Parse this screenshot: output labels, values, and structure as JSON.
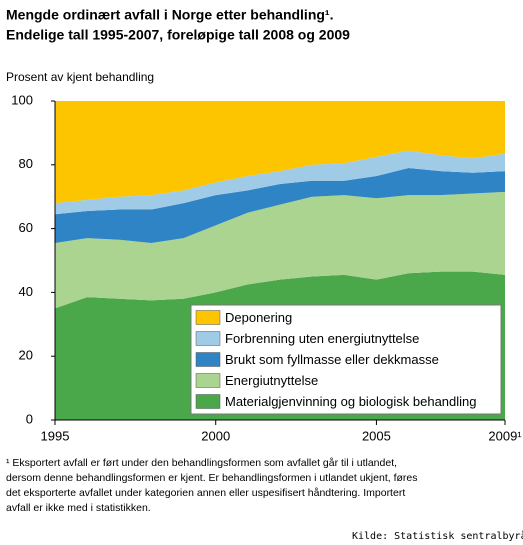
{
  "chart_data": {
    "type": "stacked_area",
    "title": "Mengde ordinært avfall i Norge etter behandling¹.",
    "subtitle": "Endelige tall 1995-2007, foreløpige tall 2008 og 2009",
    "y_label": "Prosent av kjent behandling",
    "x": [
      1995,
      1996,
      1997,
      1998,
      1999,
      2000,
      2001,
      2002,
      2003,
      2004,
      2005,
      2006,
      2007,
      2008,
      2009
    ],
    "series": [
      {
        "name": "Materialgjenvinning og biologisk behandling",
        "color": "#4aa74a",
        "values": [
          35,
          38.5,
          38,
          37.5,
          38,
          40,
          42.5,
          44,
          45,
          45.5,
          44,
          46,
          46.5,
          46.5,
          45.5
        ]
      },
      {
        "name": "Energiutnyttelse",
        "color": "#aad48f",
        "values": [
          20.5,
          18.5,
          18.5,
          18,
          19,
          21,
          22.5,
          23.5,
          25,
          25,
          25.5,
          24.5,
          24,
          24.5,
          26
        ]
      },
      {
        "name": "Brukt som fyllmasse eller dekkmasse",
        "color": "#2f84c5",
        "values": [
          9,
          8.5,
          9.5,
          10.5,
          11,
          9.5,
          7,
          6.5,
          5,
          4.5,
          7,
          8.5,
          7.5,
          6.5,
          6.5
        ]
      },
      {
        "name": "Forbrenning uten energiutnyttelse",
        "color": "#a0cbe7",
        "values": [
          3.5,
          3.5,
          4,
          4.5,
          4,
          4,
          4.5,
          4,
          5,
          5.5,
          6,
          5.5,
          5,
          4.5,
          5.5
        ]
      },
      {
        "name": "Deponering",
        "color": "#fdc400",
        "values": [
          32,
          31,
          30,
          29.5,
          28,
          25.5,
          23.5,
          22,
          20,
          19.5,
          17.5,
          15.5,
          17,
          18,
          16.5
        ]
      }
    ],
    "xlim": [
      1995,
      2009
    ],
    "xticks": [
      1995,
      2000,
      2005,
      {
        "value": 2009,
        "label": "2009¹"
      }
    ],
    "ylim": [
      0,
      100
    ],
    "yticks": [
      0,
      20,
      40,
      60,
      80,
      100
    ],
    "legend": "lower right",
    "footnote": [
      "¹ Eksportert avfall er ført under den behandlingsformen som avfallet går til i utlandet,",
      "dersom denne behandlingsformen er kjent. Er behandlingsformen i utlandet ukjent, føres",
      "det eksporterte avfallet under kategorien annen eller uspesifisert håndtering. Importert",
      "avfall er ikke med i statistikken."
    ],
    "source": "Kilde: Statistisk sentralbyrå"
  }
}
